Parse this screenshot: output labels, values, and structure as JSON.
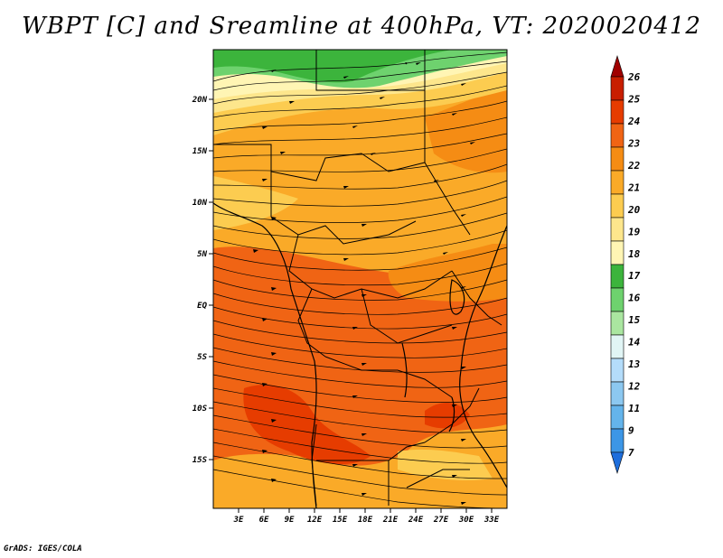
{
  "title": "WBPT [C] and Sreamline at 400hPa, VT: 2020020412",
  "credit": "GrADS: IGES/COLA",
  "lat_labels": [
    "20N",
    "15N",
    "10N",
    "5N",
    "EQ",
    "5S",
    "10S",
    "15S"
  ],
  "lon_labels": [
    "3E",
    "6E",
    "9E",
    "12E",
    "15E",
    "18E",
    "21E",
    "24E",
    "27E",
    "30E",
    "33E"
  ],
  "colorbar": {
    "labels": [
      "26",
      "25",
      "24",
      "23",
      "22",
      "21",
      "20",
      "19",
      "18",
      "17",
      "16",
      "15",
      "14",
      "13",
      "12",
      "11",
      "9",
      "7"
    ],
    "colors": [
      "#a00000",
      "#c81e00",
      "#e63c00",
      "#f06414",
      "#f58c14",
      "#faaa28",
      "#fccc50",
      "#fde68c",
      "#fff5b4",
      "#3cb43c",
      "#6ed26e",
      "#aae6a0",
      "#e1f5f5",
      "#b4dcfa",
      "#8cc8f0",
      "#64b4eb",
      "#3c96e6",
      "#1e6edc"
    ]
  },
  "field_colors": {
    "yellow_light": "#fff5b4",
    "yellow": "#fde68c",
    "orange_light": "#fccc50",
    "orange": "#faaa28",
    "orange_dark": "#f58c14",
    "red_orange": "#f06414",
    "red": "#e63c00",
    "green_light": "#6ed26e",
    "green": "#3cb43c"
  }
}
